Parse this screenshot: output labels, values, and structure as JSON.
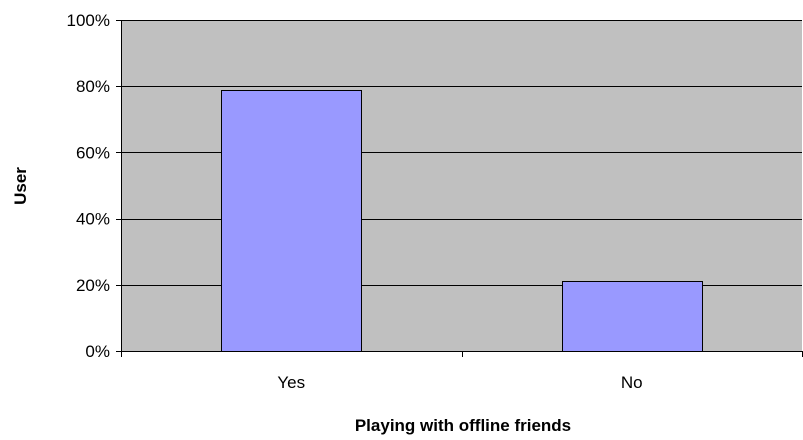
{
  "chart_data": {
    "type": "bar",
    "categories": [
      "Yes",
      "No"
    ],
    "values": [
      79,
      21
    ],
    "y_unit": "%",
    "xlabel": "Playing with offline friends",
    "ylabel": "User",
    "ylim": [
      0,
      100
    ],
    "y_ticks": [
      0,
      20,
      40,
      60,
      80,
      100
    ],
    "y_tick_labels": [
      "0%",
      "20%",
      "40%",
      "60%",
      "80%",
      "100%"
    ],
    "grid": true,
    "legend": "none",
    "colors": {
      "plot_background": "#c0c0c0",
      "bar_fill": "#9999ff",
      "bar_stroke": "#000000",
      "gridline": "#000000"
    }
  }
}
